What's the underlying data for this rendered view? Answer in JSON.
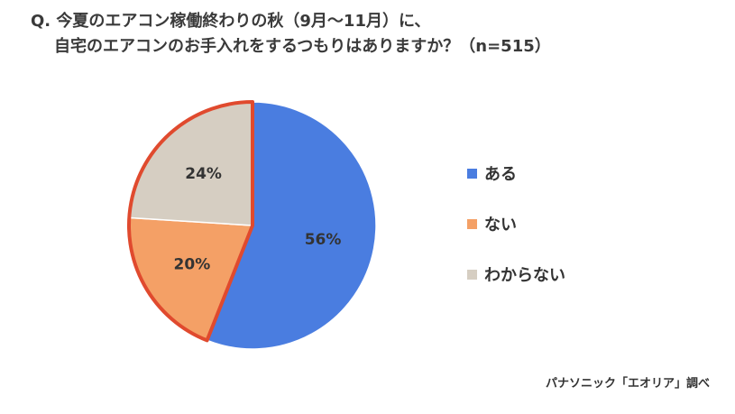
{
  "question": {
    "line1": "Q. 今夏のエアコン稼働終わりの秋（9月～11月）に、",
    "line2": "自宅のエアコンのお手入れをするつもりはありますか？（n=515）"
  },
  "source": "パナソニック「エオリア」調べ",
  "chart_data": {
    "type": "pie",
    "categories": [
      "ある",
      "ない",
      "わからない"
    ],
    "values": [
      56,
      20,
      24
    ],
    "data_labels": [
      "56%",
      "20%",
      "24%"
    ],
    "colors": [
      "#4a7de0",
      "#f4a066",
      "#d6cec2"
    ],
    "highlight_outline_color": "#e04a2e",
    "highlighted_categories": [
      "ない",
      "わからない"
    ],
    "start": "12 o'clock, clockwise",
    "legend_position": "right"
  }
}
